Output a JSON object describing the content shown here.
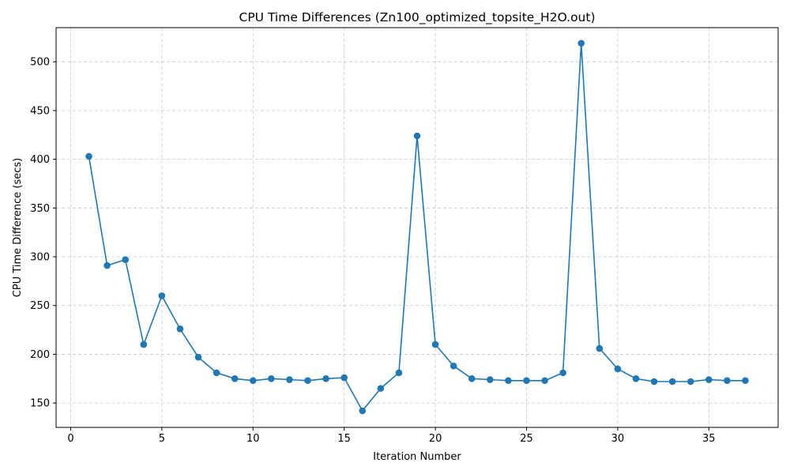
{
  "chart_data": {
    "type": "line",
    "title": "CPU Time Differences (Zn100_optimized_topsite_H2O.out)",
    "xlabel": "Iteration Number",
    "ylabel": "CPU Time Difference (secs)",
    "xlim": [
      -0.8,
      38.8
    ],
    "ylim": [
      125,
      535
    ],
    "xticks": [
      0,
      5,
      10,
      15,
      20,
      25,
      30,
      35
    ],
    "yticks": [
      150,
      200,
      250,
      300,
      350,
      400,
      450,
      500
    ],
    "grid": true,
    "color": "#1f77b4",
    "series": [
      {
        "x": [
          1,
          2,
          3,
          4,
          5,
          6,
          7,
          8,
          9,
          10,
          11,
          12,
          13,
          14,
          15,
          16,
          17,
          18,
          19,
          20,
          21,
          22,
          23,
          24,
          25,
          26,
          27,
          28,
          29,
          30,
          31,
          32,
          33,
          34,
          35,
          36,
          37
        ],
        "y": [
          403,
          291,
          297,
          210,
          260,
          226,
          197,
          181,
          175,
          173,
          175,
          174,
          173,
          175,
          176,
          142,
          165,
          181,
          424,
          210,
          188,
          175,
          174,
          173,
          173,
          173,
          181,
          519,
          206,
          185,
          175,
          172,
          172,
          172,
          174,
          173,
          173
        ]
      }
    ]
  }
}
